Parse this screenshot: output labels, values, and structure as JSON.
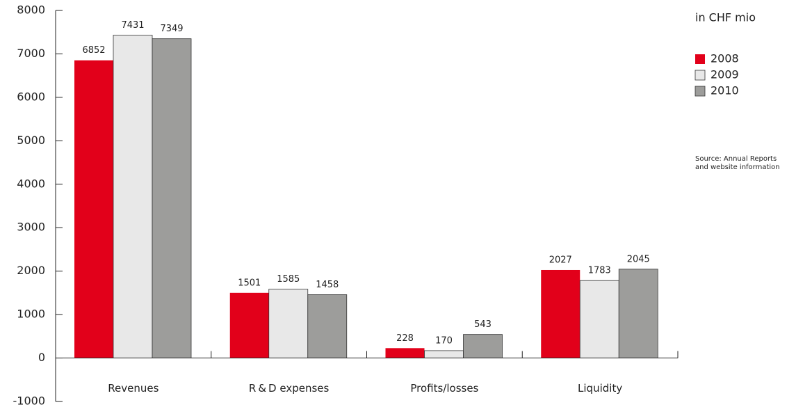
{
  "chart_data": {
    "type": "bar",
    "unit_note": "in CHF mio",
    "source": [
      "Source: Annual Reports",
      "and website information"
    ],
    "categories": [
      "Revenues",
      "R & D expenses",
      "Profits/losses",
      "Liquidity"
    ],
    "series": [
      {
        "name": "2008",
        "color": "#e2001a",
        "values": [
          6852,
          1501,
          228,
          2027
        ]
      },
      {
        "name": "2009",
        "color": "#e8e8e8",
        "values": [
          7431,
          1585,
          170,
          1783
        ]
      },
      {
        "name": "2010",
        "color": "#9d9d9b",
        "values": [
          7349,
          1458,
          543,
          2045
        ]
      }
    ],
    "ylim": [
      -1000,
      8000
    ],
    "yticks": [
      -1000,
      0,
      1000,
      2000,
      3000,
      4000,
      5000,
      6000,
      7000,
      8000
    ]
  }
}
